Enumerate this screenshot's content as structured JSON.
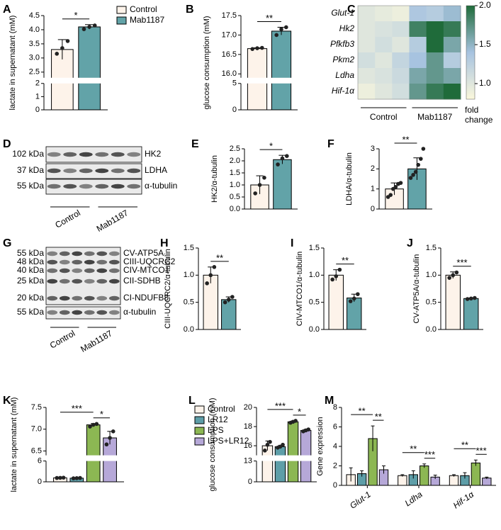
{
  "chart_data": [
    {
      "type": "bar",
      "panel": "A",
      "ylabel": "lactate in supernatant (mM)",
      "segments": [
        {
          "ylim": [
            0,
            2
          ],
          "yticks": [
            0,
            1,
            2
          ]
        },
        {
          "ylim": [
            2.3,
            4.5
          ],
          "yticks": [
            {
              "value": 2.5,
              "label": "2.5"
            },
            {
              "value": 3,
              "label": "3.0"
            },
            {
              "value": 3.5,
              "label": "3.5"
            },
            {
              "value": 4,
              "label": "4.0"
            },
            {
              "value": 4.5,
              "label": "4.5"
            }
          ]
        }
      ],
      "series": [
        {
          "name": "Control",
          "color": "#fdf3ea",
          "values": [
            3.3
          ],
          "errors": [
            0.35
          ],
          "points": [
            [
              3.15,
              3.35,
              3.6
            ]
          ]
        },
        {
          "name": "Mab1187",
          "color": "#62a3a8",
          "values": [
            4.1
          ],
          "errors": [
            0.08
          ],
          "points": [
            [
              4.02,
              4.1,
              4.15
            ]
          ]
        }
      ],
      "significance": [
        {
          "label": "*",
          "between": [
            0,
            1
          ]
        }
      ]
    },
    {
      "type": "bar",
      "panel": "B",
      "ylabel": "glucose consumption (mM)",
      "segments": [
        {
          "ylim": [
            0,
            5
          ],
          "yticks": [
            0,
            5
          ]
        },
        {
          "ylim": [
            15.9,
            17.5
          ],
          "yticks": [
            {
              "value": 16,
              "label": "16.0"
            },
            {
              "value": 16.5,
              "label": "16.5"
            },
            {
              "value": 17,
              "label": "17.0"
            },
            {
              "value": 17.5,
              "label": "17.5"
            }
          ]
        }
      ],
      "series": [
        {
          "color": "#fdf3ea",
          "values": [
            16.65
          ],
          "errors": [
            0.02
          ],
          "points": [
            [
              16.64,
              16.66,
              16.67
            ]
          ]
        },
        {
          "color": "#62a3a8",
          "values": [
            17.1
          ],
          "errors": [
            0.1
          ],
          "points": [
            [
              17.0,
              17.15,
              17.2
            ]
          ]
        }
      ],
      "significance": [
        {
          "label": "**",
          "between": [
            0,
            1
          ]
        }
      ]
    },
    {
      "type": "heatmap",
      "panel": "C",
      "rows": [
        "Glut-1",
        "Hk2",
        "Pfkfb3",
        "Pkm2",
        "Ldha",
        "Hif-1α"
      ],
      "values": [
        [
          1.0,
          0.95,
          0.9,
          1.35,
          1.3,
          1.45
        ],
        [
          1.0,
          1.05,
          1.1,
          1.85,
          2.0,
          1.9
        ],
        [
          1.0,
          1.1,
          1.0,
          1.3,
          2.0,
          1.6
        ],
        [
          1.1,
          1.0,
          1.2,
          1.4,
          1.7,
          1.3
        ],
        [
          1.0,
          1.05,
          1.15,
          1.6,
          1.7,
          1.6
        ],
        [
          0.9,
          1.0,
          1.1,
          1.7,
          1.9,
          2.0
        ]
      ],
      "groups": [
        {
          "label": "Control",
          "columns": 3
        },
        {
          "label": "Mab1187",
          "columns": 3
        }
      ],
      "colorbar": {
        "lim": [
          0.8,
          2.0
        ],
        "ticks": [
          {
            "value": 1,
            "label": "1.0"
          },
          {
            "value": 1.5,
            "label": "1.5"
          },
          {
            "value": 2,
            "label": "2.0"
          }
        ],
        "label": "fold change",
        "colors": [
          "#fbf8dc",
          "#a7c3e0",
          "#1f6b3a"
        ]
      }
    },
    {
      "type": "blot",
      "panel": "D",
      "markers": [
        "102 kDa",
        "37 kDa",
        "55 kDa"
      ],
      "bands": [
        "HK2",
        "LDHA",
        "α-tubulin"
      ],
      "groups": [
        "Control",
        "Mab1187"
      ]
    },
    {
      "type": "bar",
      "panel": "E",
      "ylabel": "HK2/α-tubulin",
      "ylim": [
        0,
        2.5
      ],
      "yticks": [
        {
          "value": 0,
          "label": "0.0"
        },
        {
          "value": 0.5,
          "label": "0.5"
        },
        {
          "value": 1,
          "label": "1.0"
        },
        {
          "value": 1.5,
          "label": "1.5"
        },
        {
          "value": 2,
          "label": "2.0"
        },
        {
          "value": 2.5,
          "label": "2.5"
        }
      ],
      "series": [
        {
          "color": "#fdf3ea",
          "values": [
            1.0
          ],
          "errors": [
            0.38
          ],
          "points": [
            [
              0.65,
              1.0,
              1.3
            ]
          ]
        },
        {
          "color": "#62a3a8",
          "values": [
            2.05
          ],
          "errors": [
            0.18
          ],
          "points": [
            [
              1.85,
              2.1,
              2.2
            ]
          ]
        }
      ],
      "significance": [
        {
          "label": "*",
          "between": [
            0,
            1
          ]
        }
      ]
    },
    {
      "type": "bar",
      "panel": "F",
      "ylabel": "LDHA/α-tubulin",
      "ylim": [
        0,
        3
      ],
      "yticks": [
        0,
        1,
        2,
        3
      ],
      "series": [
        {
          "color": "#fdf3ea",
          "values": [
            1.0
          ],
          "errors": [
            0.3
          ],
          "points": [
            [
              0.6,
              0.7,
              1.0,
              1.1,
              1.25,
              1.3
            ]
          ]
        },
        {
          "color": "#62a3a8",
          "values": [
            2.0
          ],
          "errors": [
            0.55
          ],
          "points": [
            [
              1.55,
              1.7,
              1.85,
              2.2,
              2.5,
              3.0
            ]
          ]
        }
      ],
      "significance": [
        {
          "label": "**",
          "between": [
            0,
            1
          ]
        }
      ]
    },
    {
      "type": "blot",
      "panel": "G",
      "markers": [
        "55 kDa",
        "48 kDa",
        "40 kDa",
        "25 kDa",
        "20 kDa",
        "55 kDa"
      ],
      "bands": [
        "CV-ATP5A",
        "CIII-UQCRC2",
        "CIV-MTCO1",
        "CII-SDHB",
        "CI-NDUFB8",
        "α-tubulin"
      ],
      "groups": [
        "Control",
        "Mab1187"
      ]
    },
    {
      "type": "bar",
      "panel": "H",
      "ylabel": "CIII-UQCRC2/α-tubulin",
      "ylim": [
        0,
        1.5
      ],
      "yticks": [
        {
          "value": 0,
          "label": "0.0"
        },
        {
          "value": 0.5,
          "label": "0.5"
        },
        {
          "value": 1,
          "label": "1.0"
        },
        {
          "value": 1.5,
          "label": "1.5"
        }
      ],
      "series": [
        {
          "color": "#fdf3ea",
          "values": [
            1.0
          ],
          "errors": [
            0.15
          ],
          "points": [
            [
              0.85,
              1.0,
              1.15
            ]
          ]
        },
        {
          "color": "#62a3a8",
          "values": [
            0.55
          ],
          "errors": [
            0.05
          ],
          "points": [
            [
              0.5,
              0.55,
              0.6
            ]
          ]
        }
      ],
      "significance": [
        {
          "label": "**",
          "between": [
            0,
            1
          ]
        }
      ]
    },
    {
      "type": "bar",
      "panel": "I",
      "ylabel": "CIV-MTCO1/α-tubulin",
      "ylim": [
        0,
        1.5
      ],
      "yticks": [
        {
          "value": 0,
          "label": "0.0"
        },
        {
          "value": 0.5,
          "label": "0.5"
        },
        {
          "value": 1,
          "label": "1.0"
        },
        {
          "value": 1.5,
          "label": "1.5"
        }
      ],
      "series": [
        {
          "color": "#fdf3ea",
          "values": [
            1.0
          ],
          "errors": [
            0.1
          ],
          "points": [
            [
              0.92,
              0.98,
              1.1
            ]
          ]
        },
        {
          "color": "#62a3a8",
          "values": [
            0.58
          ],
          "errors": [
            0.07
          ],
          "points": [
            [
              0.52,
              0.57,
              0.65
            ]
          ]
        }
      ],
      "significance": [
        {
          "label": "**",
          "between": [
            0,
            1
          ]
        }
      ]
    },
    {
      "type": "bar",
      "panel": "J",
      "ylabel": "CV-ATP5A/α-tubulin",
      "ylim": [
        0,
        1.5
      ],
      "yticks": [
        {
          "value": 0,
          "label": "0.0"
        },
        {
          "value": 0.5,
          "label": "0.5"
        },
        {
          "value": 1,
          "label": "1.0"
        },
        {
          "value": 1.5,
          "label": "1.5"
        }
      ],
      "series": [
        {
          "color": "#fdf3ea",
          "values": [
            1.0
          ],
          "errors": [
            0.06
          ],
          "points": [
            [
              0.95,
              1.0,
              1.05
            ]
          ]
        },
        {
          "color": "#62a3a8",
          "values": [
            0.57
          ],
          "errors": [
            0.01
          ],
          "points": [
            [
              0.56,
              0.57,
              0.58
            ]
          ]
        }
      ],
      "significance": [
        {
          "label": "***",
          "between": [
            0,
            1
          ]
        }
      ]
    },
    {
      "type": "bar",
      "panel": "K",
      "ylabel": "lactate in supernatant (mM)",
      "segments": [
        {
          "ylim": [
            0,
            6
          ],
          "yticks": [
            0,
            6
          ]
        },
        {
          "ylim": [
            6.4,
            7.5
          ],
          "yticks": [
            {
              "value": 6.5,
              "label": "6.5"
            },
            {
              "value": 7,
              "label": "7.0"
            },
            {
              "value": 7.5,
              "label": "7.5"
            }
          ]
        }
      ],
      "series": [
        {
          "name": "Control",
          "color": "#fdf3ea",
          "values": [
            1.15
          ],
          "errors": [
            0.05
          ],
          "points": [
            [
              1.1,
              1.15,
              1.2
            ]
          ]
        },
        {
          "name": "LR12",
          "color": "#5e9ea8",
          "values": [
            1.05
          ],
          "errors": [
            0.05
          ],
          "points": [
            [
              1.0,
              1.05,
              1.1
            ]
          ]
        },
        {
          "name": "LPS",
          "color": "#8cb753",
          "values": [
            7.1
          ],
          "errors": [
            0.03
          ],
          "points": [
            [
              7.06,
              7.1,
              7.12
            ]
          ]
        },
        {
          "name": "LPS+LR12",
          "color": "#b6a8d8",
          "values": [
            6.8
          ],
          "errors": [
            0.15
          ],
          "points": [
            [
              6.65,
              6.8,
              6.95
            ]
          ]
        }
      ],
      "significance": [
        {
          "label": "***",
          "between": [
            0,
            2
          ]
        },
        {
          "label": "*",
          "between": [
            2,
            3
          ]
        }
      ]
    },
    {
      "type": "bar",
      "panel": "L",
      "ylabel": "glucose consumption (mM)",
      "segments": [
        {
          "ylim": [
            0,
            13
          ],
          "yticks": [
            0,
            13
          ]
        },
        {
          "ylim": [
            15,
            20
          ],
          "yticks": [
            16,
            18,
            20
          ]
        }
      ],
      "series": [
        {
          "color": "#fdf3ea",
          "values": [
            16.0
          ],
          "errors": [
            0.5
          ],
          "points": [
            [
              15.5,
              16.1,
              16.4
            ]
          ]
        },
        {
          "color": "#5e9ea8",
          "values": [
            15.9
          ],
          "errors": [
            0.15
          ],
          "points": [
            [
              15.8,
              15.9,
              16.1
            ]
          ]
        },
        {
          "color": "#8cb753",
          "values": [
            18.5
          ],
          "errors": [
            0.1
          ],
          "points": [
            [
              18.4,
              18.5,
              18.6
            ]
          ]
        },
        {
          "color": "#b6a8d8",
          "values": [
            17.6
          ],
          "errors": [
            0.12
          ],
          "points": [
            [
              17.5,
              17.6,
              17.7
            ]
          ]
        }
      ],
      "significance": [
        {
          "label": "***",
          "between": [
            0,
            2
          ]
        },
        {
          "label": "*",
          "between": [
            2,
            3
          ]
        }
      ]
    },
    {
      "type": "bar",
      "panel": "M",
      "ylabel": "Gene expression",
      "ylim": [
        0,
        8
      ],
      "yticks": [
        0,
        2,
        4,
        6,
        8
      ],
      "categories": [
        "Glut-1",
        "Ldha",
        "Hif-1α"
      ],
      "series": [
        {
          "color": "#fdf3ea",
          "values": [
            1.1,
            1.0,
            1.0
          ],
          "errors": [
            0.7,
            0.1,
            0.1
          ]
        },
        {
          "color": "#5e9ea8",
          "values": [
            1.2,
            1.1,
            1.0
          ],
          "errors": [
            0.3,
            0.4,
            0.3
          ]
        },
        {
          "color": "#8cb753",
          "values": [
            4.8,
            2.0,
            2.3
          ],
          "errors": [
            1.3,
            0.2,
            0.3
          ]
        },
        {
          "color": "#b6a8d8",
          "values": [
            1.6,
            0.85,
            0.75
          ],
          "errors": [
            0.4,
            0.2,
            0.1
          ]
        }
      ],
      "significance": [
        {
          "label": "**",
          "between": [
            0,
            2
          ],
          "category": 0
        },
        {
          "label": "**",
          "between": [
            2,
            3
          ],
          "category": 0
        },
        {
          "label": "**",
          "between": [
            0,
            2
          ],
          "category": 1
        },
        {
          "label": "***",
          "between": [
            2,
            3
          ],
          "category": 1
        },
        {
          "label": "**",
          "between": [
            0,
            2
          ],
          "category": 2
        },
        {
          "label": "***",
          "between": [
            2,
            3
          ],
          "category": 2
        }
      ]
    }
  ]
}
